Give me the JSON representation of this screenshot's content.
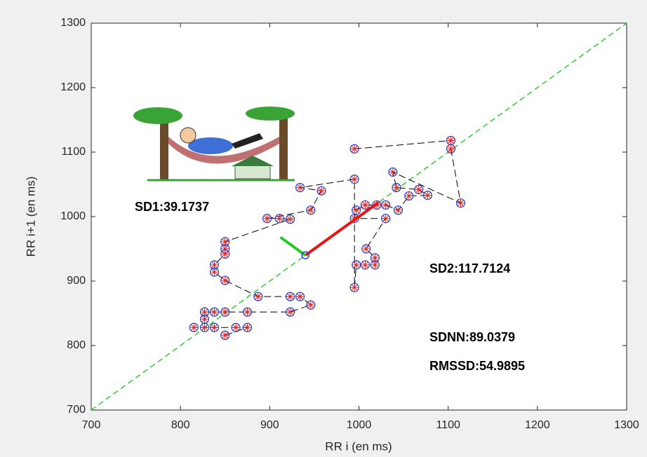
{
  "chart_data": {
    "type": "scatter",
    "x_label": "RR i (en ms)",
    "y_label": "RR i+1 (en ms)",
    "xlim": [
      700,
      1300
    ],
    "ylim": [
      700,
      1300
    ],
    "xticks": [
      700,
      800,
      900,
      1000,
      1100,
      1200,
      1300
    ],
    "yticks": [
      700,
      800,
      900,
      1000,
      1100,
      1200,
      1300
    ],
    "x": [
      995,
      1103,
      1103,
      1114,
      1038,
      1042,
      1067,
      1077,
      1056,
      1044,
      1030,
      1020,
      1007,
      997,
      995,
      1030,
      1008,
      1018,
      1018,
      1007,
      997,
      995,
      995,
      934,
      958,
      946,
      897,
      911,
      923,
      850,
      850,
      850,
      838,
      838,
      850,
      887,
      923,
      934,
      946,
      923,
      875,
      850,
      838,
      827,
      827,
      827,
      815,
      838,
      862,
      875,
      850
    ],
    "y": [
      1105,
      1118,
      1105,
      1021,
      1069,
      1045,
      1042,
      1033,
      1032,
      1010,
      1018,
      1018,
      1018,
      1010,
      997,
      997,
      950,
      936,
      925,
      925,
      925,
      890,
      1058,
      1045,
      1040,
      1010,
      997,
      997,
      996,
      961,
      950,
      942,
      925,
      914,
      901,
      876,
      876,
      876,
      863,
      852,
      852,
      852,
      852,
      852,
      841,
      828,
      828,
      828,
      828,
      828,
      816
    ],
    "marker_color": "#1f3fd0",
    "marker_cross_color": "#e02020",
    "line_color": "#000000",
    "identity_line": true,
    "identity_color": "#33cc33",
    "sd2_line": {
      "x": [
        940,
        1022
      ],
      "y": [
        940,
        1022
      ],
      "color": "#ee1111"
    },
    "sd1_line": {
      "x": [
        940,
        912
      ],
      "y": [
        940,
        968
      ],
      "color": "#22cc22"
    },
    "annotations": [
      "SD1:39.1737",
      "SD2:117.7124",
      "SDNN:89.0379",
      "RMSSD:54.9895"
    ]
  }
}
